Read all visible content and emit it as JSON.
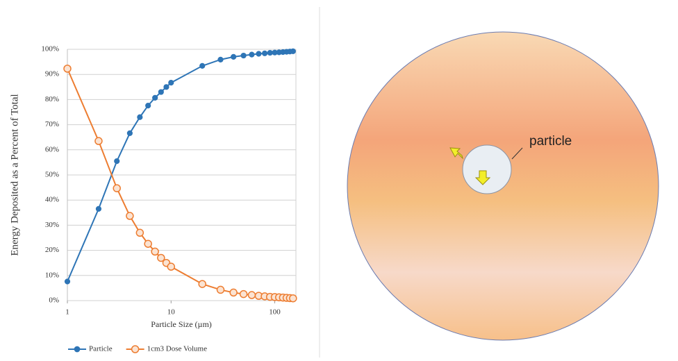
{
  "chart_data": {
    "type": "line",
    "xlabel": "Particle Size (µm)",
    "ylabel": "Energy Deposited as a Percent of Total",
    "x": [
      1,
      2,
      3,
      4,
      5,
      6,
      7,
      8,
      9,
      10,
      20,
      30,
      40,
      50,
      60,
      70,
      80,
      90,
      100,
      110,
      120,
      130,
      140,
      150
    ],
    "series": [
      {
        "name": "Particle",
        "color": "#2e75b6",
        "marker": "filled",
        "values": [
          7.6,
          36.5,
          55.5,
          66.6,
          73,
          77.6,
          80.7,
          83,
          85,
          86.7,
          93.4,
          95.9,
          97,
          97.5,
          97.9,
          98.2,
          98.4,
          98.6,
          98.7,
          98.8,
          98.9,
          99,
          99.1,
          99.2
        ]
      },
      {
        "name": "1cm3 Dose Volume",
        "color": "#ed7d31",
        "marker": "hollow",
        "values": [
          92.3,
          63.5,
          44.7,
          33.7,
          27,
          22.6,
          19.5,
          17,
          15,
          13.5,
          6.6,
          4.3,
          3.2,
          2.6,
          2.2,
          1.9,
          1.7,
          1.5,
          1.4,
          1.3,
          1.2,
          1.1,
          1.0,
          0.9
        ]
      }
    ],
    "xlim": [
      1,
      160
    ],
    "xscale": "log",
    "xticks": [
      1,
      10,
      100
    ],
    "ylim": [
      0,
      100
    ],
    "yticks": [
      {
        "value": 0,
        "label": "0%"
      },
      {
        "value": 10,
        "label": "10%"
      },
      {
        "value": 20,
        "label": "20%"
      },
      {
        "value": 30,
        "label": "30%"
      },
      {
        "value": 40,
        "label": "40%"
      },
      {
        "value": 50,
        "label": "50%"
      },
      {
        "value": 60,
        "label": "60%"
      },
      {
        "value": 70,
        "label": "70%"
      },
      {
        "value": 80,
        "label": "80%"
      },
      {
        "value": 90,
        "label": "90%"
      },
      {
        "value": 100,
        "label": "100%"
      }
    ],
    "grid": true,
    "legend": "bottom"
  },
  "diagram": {
    "label": "particle"
  }
}
